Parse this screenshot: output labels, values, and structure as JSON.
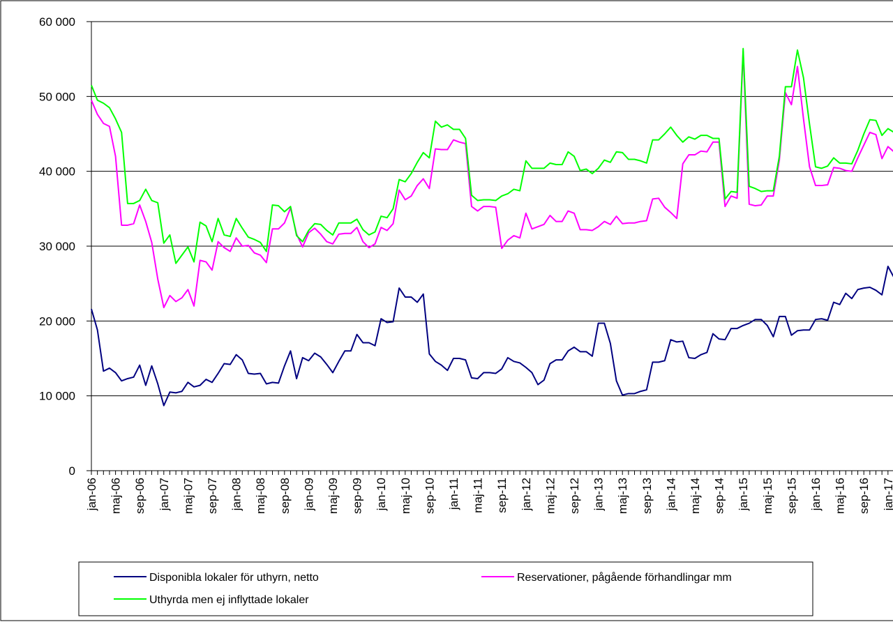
{
  "chart_data": {
    "type": "line",
    "categories": [
      "jan-06",
      null,
      null,
      null,
      "maj-06",
      null,
      null,
      null,
      "sep-06",
      null,
      null,
      null,
      "jan-07",
      null,
      null,
      null,
      "maj-07",
      null,
      null,
      null,
      "sep-07",
      null,
      null,
      null,
      "jan-08",
      null,
      null,
      null,
      "maj-08",
      null,
      null,
      null,
      "sep-08",
      null,
      null,
      null,
      "jan-09",
      null,
      null,
      null,
      "maj-09",
      null,
      null,
      null,
      "sep-09",
      null,
      null,
      null,
      "jan-10",
      null,
      null,
      null,
      "maj-10",
      null,
      null,
      null,
      "sep-10",
      null,
      null,
      null,
      "jan-11",
      null,
      null,
      null,
      "maj-11",
      null,
      null,
      null,
      "sep-11",
      null,
      null,
      null,
      "jan-12",
      null,
      null,
      null,
      "maj-12",
      null,
      null,
      null,
      "sep-12",
      null,
      null,
      null,
      "jan-13",
      null,
      null,
      null,
      "maj-13",
      null,
      null,
      null,
      "sep-13",
      null,
      null,
      null,
      "jan-14",
      null,
      null,
      null,
      "maj-14",
      null,
      null,
      null,
      "sep-14",
      null,
      null,
      null,
      "jan-15",
      null,
      null,
      null,
      "maj-15",
      null,
      null,
      null,
      "sep-15",
      null,
      null,
      null,
      "jan-16",
      null,
      null,
      null,
      "maj-16",
      null,
      null,
      null,
      "sep-16",
      null,
      null,
      null,
      "jan-17",
      null
    ],
    "series": [
      {
        "name": "Disponibla lokaler för uthyrn, netto",
        "color": "#000080",
        "values": [
          21600,
          18800,
          13300,
          13700,
          13100,
          12000,
          12300,
          12500,
          14100,
          11400,
          14000,
          11600,
          8700,
          10500,
          10400,
          10600,
          11800,
          11200,
          11400,
          12200,
          11800,
          13000,
          14300,
          14200,
          15500,
          14800,
          13000,
          12900,
          13000,
          11600,
          11800,
          11700,
          14000,
          16000,
          12300,
          15100,
          14700,
          15700,
          15200,
          14200,
          13100,
          14600,
          16000,
          16000,
          18200,
          17100,
          17100,
          16700,
          20300,
          19800,
          19900,
          24400,
          23200,
          23200,
          22500,
          23600,
          15600,
          14600,
          14100,
          13400,
          15000,
          15000,
          14800,
          12400,
          12300,
          13100,
          13100,
          13000,
          13600,
          15100,
          14600,
          14400,
          13800,
          13100,
          11500,
          12100,
          14300,
          14800,
          14800,
          16000,
          16500,
          15900,
          15900,
          15300,
          19700,
          19700,
          17000,
          12000,
          10100,
          10300,
          10300,
          10600,
          10800,
          14500,
          14500,
          14700,
          17500,
          17200,
          17300,
          15100,
          15000,
          15500,
          15800,
          18300,
          17600,
          17500,
          19000,
          19000,
          19400,
          19700,
          20200,
          20200,
          19400,
          17900,
          20600,
          20600,
          18100,
          18700,
          18800,
          18800,
          20200,
          20300,
          20100,
          22500,
          22200,
          23700,
          23000,
          24200,
          24400,
          24500,
          24100,
          23500,
          27300,
          25800
        ]
      },
      {
        "name": "Reservationer, pågående förhandlingar mm",
        "color": "#ff00ff",
        "values": [
          49500,
          47600,
          46400,
          46000,
          42000,
          32800,
          32800,
          33000,
          35500,
          33300,
          30500,
          25600,
          21800,
          23400,
          22600,
          23100,
          24200,
          22000,
          28100,
          27900,
          26800,
          30600,
          29800,
          29300,
          31100,
          30000,
          30100,
          29100,
          28800,
          27800,
          32300,
          32300,
          33100,
          35100,
          31600,
          29900,
          31800,
          32400,
          31600,
          30600,
          30300,
          31600,
          31700,
          31700,
          32500,
          30600,
          29800,
          30300,
          32500,
          32100,
          33000,
          37500,
          36200,
          36700,
          38100,
          39000,
          37700,
          43000,
          42900,
          42900,
          44200,
          43900,
          43700,
          35300,
          34700,
          35300,
          35300,
          35200,
          29700,
          30800,
          31400,
          31100,
          34400,
          32300,
          32600,
          32900,
          34100,
          33300,
          33300,
          34700,
          34400,
          32200,
          32200,
          32100,
          32600,
          33300,
          32900,
          34000,
          33000,
          33100,
          33100,
          33300,
          33400,
          36300,
          36400,
          35200,
          34500,
          33700,
          41000,
          42200,
          42200,
          42700,
          42600,
          43900,
          43900,
          35300,
          36700,
          36400,
          56000,
          35600,
          35400,
          35500,
          36700,
          36700,
          41500,
          50500,
          48900,
          54000,
          47000,
          40600,
          38100,
          38100,
          38200,
          40500,
          40400,
          40100,
          40000,
          41800,
          43500,
          45200,
          44900,
          41700,
          43300,
          42600
        ]
      },
      {
        "name": "Uthyrda men ej inflyttade lokaler",
        "color": "#00ff00",
        "values": [
          51500,
          49500,
          49100,
          48500,
          47000,
          45200,
          35700,
          35700,
          36100,
          37600,
          36100,
          35800,
          30400,
          31500,
          27700,
          28800,
          29900,
          27900,
          33200,
          32700,
          30600,
          33700,
          31500,
          31300,
          33700,
          32400,
          31200,
          30900,
          30500,
          29300,
          35500,
          35400,
          34600,
          35300,
          31400,
          30600,
          32100,
          33000,
          32900,
          32100,
          31500,
          33100,
          33100,
          33100,
          33600,
          32200,
          31500,
          31900,
          34000,
          33800,
          35000,
          38900,
          38600,
          39700,
          41200,
          42500,
          41800,
          46700,
          45900,
          46200,
          45600,
          45600,
          44400,
          36800,
          36100,
          36200,
          36200,
          36100,
          36700,
          37000,
          37600,
          37400,
          41400,
          40400,
          40400,
          40400,
          41100,
          40900,
          40900,
          42600,
          42000,
          40100,
          40300,
          39700,
          40400,
          41500,
          41200,
          42600,
          42500,
          41600,
          41600,
          41400,
          41100,
          44200,
          44200,
          45000,
          45900,
          44800,
          43900,
          44600,
          44300,
          44800,
          44800,
          44400,
          44400,
          36300,
          37300,
          37200,
          56400,
          38000,
          37700,
          37300,
          37400,
          37400,
          42000,
          51300,
          51300,
          56200,
          52500,
          46300,
          40600,
          40400,
          40700,
          41800,
          41100,
          41100,
          41000,
          42800,
          45000,
          46900,
          46800,
          44800,
          45700,
          45200
        ]
      }
    ],
    "ylim": [
      0,
      60000
    ],
    "yticks": [
      0,
      {
        "value": 10000,
        "label": "10 000"
      },
      {
        "value": 20000,
        "label": "20 000"
      },
      {
        "value": 30000,
        "label": "30 000"
      },
      {
        "value": 40000,
        "label": "40 000"
      },
      {
        "value": 50000,
        "label": "50 000"
      },
      {
        "value": 60000,
        "label": "60 000"
      }
    ],
    "grid": true,
    "legend": "bottom"
  }
}
